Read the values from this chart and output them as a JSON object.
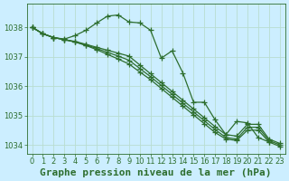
{
  "background_color": "#cceeff",
  "plot_bg_color": "#cceeff",
  "grid_color": "#b8ddd0",
  "line_color": "#2d6e2d",
  "xlabel": "Graphe pression niveau de la mer (hPa)",
  "xlim": [
    -0.5,
    23.5
  ],
  "ylim": [
    1033.7,
    1038.8
  ],
  "yticks": [
    1034,
    1035,
    1036,
    1037,
    1038
  ],
  "xticks": [
    0,
    1,
    2,
    3,
    4,
    5,
    6,
    7,
    8,
    9,
    10,
    11,
    12,
    13,
    14,
    15,
    16,
    17,
    18,
    19,
    20,
    21,
    22,
    23
  ],
  "series": [
    [
      1038.0,
      1037.78,
      1037.65,
      1037.6,
      1037.72,
      1037.9,
      1038.15,
      1038.38,
      1038.42,
      1038.18,
      1038.15,
      1037.9,
      1036.95,
      1037.2,
      1036.45,
      1035.45,
      1035.45,
      1034.85,
      1034.35,
      1034.8,
      1034.75,
      1034.25,
      1034.1,
      null
    ],
    [
      1038.0,
      1037.78,
      1037.65,
      1037.58,
      1037.52,
      1037.42,
      1037.32,
      1037.22,
      1037.12,
      1037.02,
      1036.72,
      1036.42,
      1036.12,
      1035.82,
      1035.52,
      1035.22,
      1034.92,
      1034.62,
      1034.35,
      1034.3,
      1034.7,
      1034.7,
      1034.2,
      1034.05
    ],
    [
      1038.0,
      1037.78,
      1037.65,
      1037.58,
      1037.5,
      1037.4,
      1037.28,
      1037.15,
      1037.02,
      1036.88,
      1036.6,
      1036.32,
      1036.02,
      1035.72,
      1035.42,
      1035.12,
      1034.82,
      1034.52,
      1034.25,
      1034.2,
      1034.6,
      1034.6,
      1034.15,
      1034.0
    ],
    [
      1038.0,
      1037.78,
      1037.65,
      1037.58,
      1037.5,
      1037.38,
      1037.24,
      1037.08,
      1036.92,
      1036.75,
      1036.48,
      1036.22,
      1035.92,
      1035.62,
      1035.32,
      1035.02,
      1034.72,
      1034.42,
      1034.2,
      1034.15,
      1034.5,
      1034.5,
      1034.1,
      1033.95
    ]
  ],
  "marker": "+",
  "markersize": 4,
  "linewidth": 0.9,
  "title_fontsize": 8,
  "tick_fontsize": 6
}
